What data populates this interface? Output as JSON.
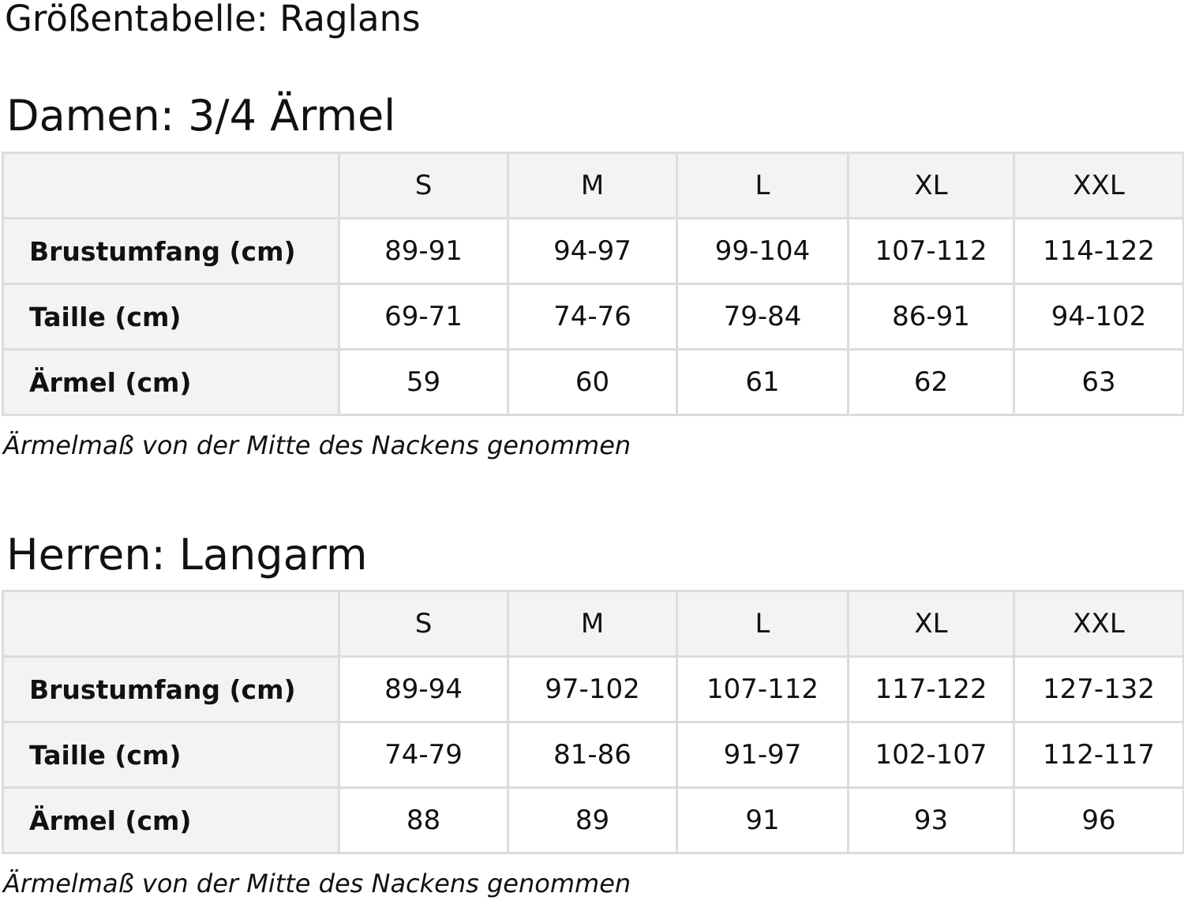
{
  "title": "Größentabelle: Raglans",
  "tables": [
    {
      "heading": "Damen: 3/4 Ärmel",
      "sizes": [
        "S",
        "M",
        "L",
        "XL",
        "XXL"
      ],
      "rows": [
        {
          "label": "Brustumfang (cm)",
          "values": [
            "89-91",
            "94-97",
            "99-104",
            "107-112",
            "114-122"
          ]
        },
        {
          "label": "Taille (cm)",
          "values": [
            "69-71",
            "74-76",
            "79-84",
            "86-91",
            "94-102"
          ]
        },
        {
          "label": "Ärmel (cm)",
          "values": [
            "59",
            "60",
            "61",
            "62",
            "63"
          ]
        }
      ],
      "note": "Ärmelmaß von der Mitte des Nackens genommen"
    },
    {
      "heading": "Herren: Langarm",
      "sizes": [
        "S",
        "M",
        "L",
        "XL",
        "XXL"
      ],
      "rows": [
        {
          "label": "Brustumfang (cm)",
          "values": [
            "89-94",
            "97-102",
            "107-112",
            "117-122",
            "127-132"
          ]
        },
        {
          "label": "Taille (cm)",
          "values": [
            "74-79",
            "81-86",
            "91-97",
            "102-107",
            "112-117"
          ]
        },
        {
          "label": "Ärmel (cm)",
          "values": [
            "88",
            "89",
            "91",
            "93",
            "96"
          ]
        }
      ],
      "note": "Ärmelmaß von der Mitte des Nackens genommen"
    }
  ]
}
